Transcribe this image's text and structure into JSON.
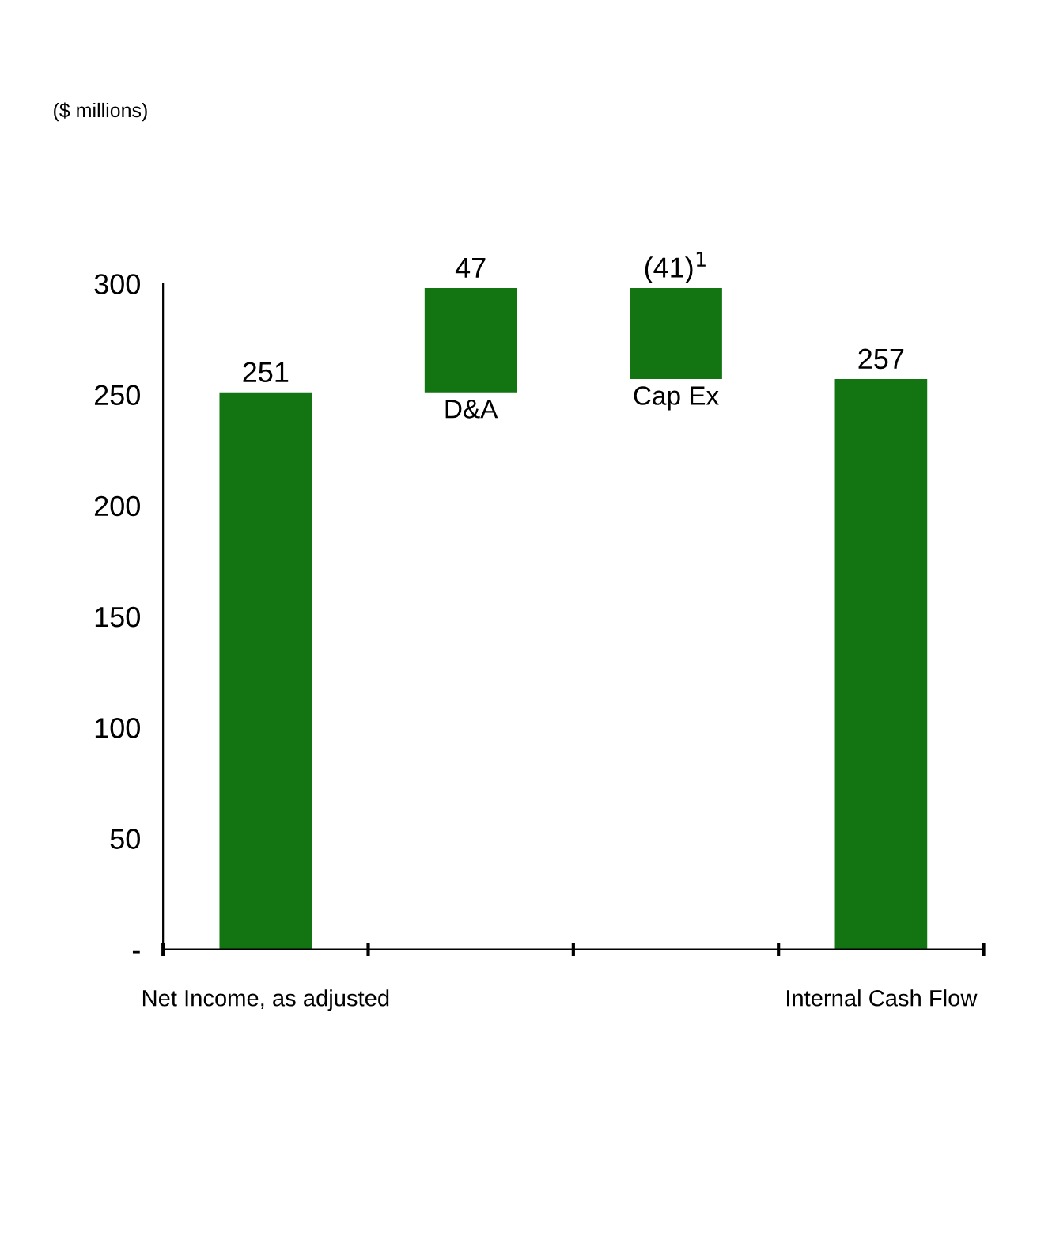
{
  "chart_data": {
    "type": "bar",
    "categories": [
      "Net Income, as adjusted",
      "D&A",
      "Cap Ex",
      "Internal Cash Flow"
    ],
    "values": [
      251,
      47,
      -41,
      257
    ],
    "base": [
      0,
      251,
      298,
      0
    ],
    "color": "#127512",
    "value_labels": [
      "251",
      "47",
      "(41)$^{1}$",
      "257"
    ],
    "ylim": [
      0,
      300
    ],
    "yticks": [
      {
        "value": 0,
        "label": "-"
      },
      50,
      100,
      150,
      200,
      250,
      300
    ],
    "annotations": [
      "($ millions)"
    ],
    "grid": false,
    "legend": false
  }
}
